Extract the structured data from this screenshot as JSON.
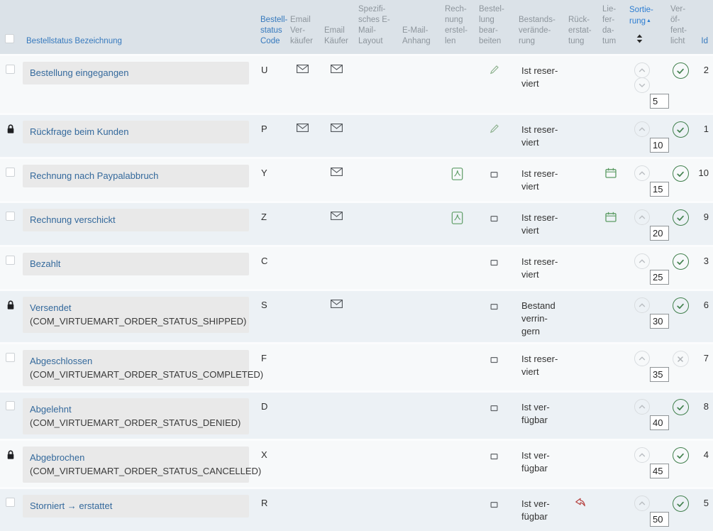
{
  "header": {
    "select_all": true,
    "columns": {
      "name": "Bestellstatus Bezeichnung",
      "code": "Bestell-status Code",
      "email_seller": "Email Ver-käufer",
      "email_buyer": "Email Käufer",
      "email_layout": "Spezifi-sches E-Mail-Layout",
      "email_attachment": "E-Mail-Anhang",
      "create_invoice": "Rech-nung erstel-len",
      "edit_order": "Bestel-lung bear-beiten",
      "stock_change": "Bestands-verände-rung",
      "refund": "Rück-erstat-tung",
      "delivery_date": "Lie-fer-da-tum",
      "ordering": "Sortie-rung",
      "published": "Ver-öf-fent-licht",
      "id": "Id"
    },
    "ordering_asc_marker": "▲"
  },
  "colors": {
    "header_bg": "#dbe2e8",
    "header_link_blue": "#3679bd",
    "active_sort_blue": "#2e7ed2",
    "row_odd": "#f7f9fa",
    "row_even": "#ecf1f5",
    "name_box_grey": "#e9e9e9",
    "name_link_blue": "#34699c",
    "icon_green": "#5c9c64",
    "published_green": "#41804d",
    "refund_red": "#b5403e"
  },
  "icons_legend": {
    "lock-solid-icon": "row is checked out / locked",
    "envelope-icon": "email enabled",
    "pdf-icon": "invoice PDF created",
    "pencil-icon": "order editable",
    "lock-outline-icon": "order not editable",
    "calendar-icon": "delivery date set",
    "refund-arrow-icon": "refund",
    "check-circle-icon": "published",
    "x-circle-icon": "unpublished"
  },
  "rows": [
    {
      "name": "Bestellung eingegangen",
      "name_constant": "",
      "code": "U",
      "row_lock": false,
      "email_seller": true,
      "email_buyer": true,
      "invoice_pdf": false,
      "edit": "editable",
      "stock_change": "Ist reser-viert",
      "refund": false,
      "delivery_date": false,
      "move_down": true,
      "ordering": "5",
      "published": "published",
      "id": "2"
    },
    {
      "name": "Rückfrage beim Kunden",
      "name_constant": "",
      "code": "P",
      "row_lock": true,
      "email_seller": true,
      "email_buyer": true,
      "invoice_pdf": false,
      "edit": "editable",
      "stock_change": "Ist reser-viert",
      "refund": false,
      "delivery_date": false,
      "move_down": false,
      "ordering": "10",
      "published": "published",
      "id": "1"
    },
    {
      "name": "Rechnung nach Paypalabbruch",
      "name_constant": "",
      "code": "Y",
      "row_lock": false,
      "email_seller": false,
      "email_buyer": true,
      "invoice_pdf": true,
      "edit": "locked",
      "stock_change": "Ist reser-viert",
      "refund": false,
      "delivery_date": true,
      "move_down": false,
      "ordering": "15",
      "published": "published",
      "id": "10"
    },
    {
      "name": "Rechnung verschickt",
      "name_constant": "",
      "code": "Z",
      "row_lock": false,
      "email_seller": false,
      "email_buyer": true,
      "invoice_pdf": true,
      "edit": "locked",
      "stock_change": "Ist reser-viert",
      "refund": false,
      "delivery_date": true,
      "move_down": false,
      "ordering": "20",
      "published": "published",
      "id": "9"
    },
    {
      "name": "Bezahlt",
      "name_constant": "",
      "code": "C",
      "row_lock": false,
      "email_seller": false,
      "email_buyer": false,
      "invoice_pdf": false,
      "edit": "locked",
      "stock_change": "Ist reser-viert",
      "refund": false,
      "delivery_date": false,
      "move_down": false,
      "ordering": "25",
      "published": "published",
      "id": "3"
    },
    {
      "name": "Versendet",
      "name_constant": "(COM_VIRTUEMART_ORDER_STATUS_SHIPPED)",
      "code": "S",
      "row_lock": true,
      "email_seller": false,
      "email_buyer": true,
      "invoice_pdf": false,
      "edit": "locked",
      "stock_change": "Bestand verrin-gern",
      "refund": false,
      "delivery_date": false,
      "move_down": false,
      "ordering": "30",
      "published": "published",
      "id": "6"
    },
    {
      "name": "Abgeschlossen",
      "name_constant": "(COM_VIRTUEMART_ORDER_STATUS_COMPLETED)",
      "code": "F",
      "row_lock": false,
      "email_seller": false,
      "email_buyer": false,
      "invoice_pdf": false,
      "edit": "locked",
      "stock_change": "Ist reser-viert",
      "refund": false,
      "delivery_date": false,
      "move_down": false,
      "ordering": "35",
      "published": "unpublished",
      "id": "7"
    },
    {
      "name": "Abgelehnt",
      "name_constant": "(COM_VIRTUEMART_ORDER_STATUS_DENIED)",
      "code": "D",
      "row_lock": false,
      "email_seller": false,
      "email_buyer": false,
      "invoice_pdf": false,
      "edit": "locked",
      "stock_change": "Ist ver-fügbar",
      "refund": false,
      "delivery_date": false,
      "move_down": false,
      "ordering": "40",
      "published": "published",
      "id": "8"
    },
    {
      "name": "Abgebrochen",
      "name_constant": "(COM_VIRTUEMART_ORDER_STATUS_CANCELLED)",
      "code": "X",
      "row_lock": true,
      "email_seller": false,
      "email_buyer": false,
      "invoice_pdf": false,
      "edit": "locked",
      "stock_change": "Ist ver-fügbar",
      "refund": false,
      "delivery_date": false,
      "move_down": false,
      "ordering": "45",
      "published": "published",
      "id": "4"
    },
    {
      "name": "Storniert → erstattet",
      "name_constant": "",
      "code": "R",
      "row_lock": false,
      "email_seller": false,
      "email_buyer": false,
      "invoice_pdf": false,
      "edit": "locked",
      "stock_change": "Ist ver-fügbar",
      "refund": true,
      "delivery_date": false,
      "move_down": false,
      "ordering": "50",
      "published": "published",
      "id": "5"
    }
  ]
}
